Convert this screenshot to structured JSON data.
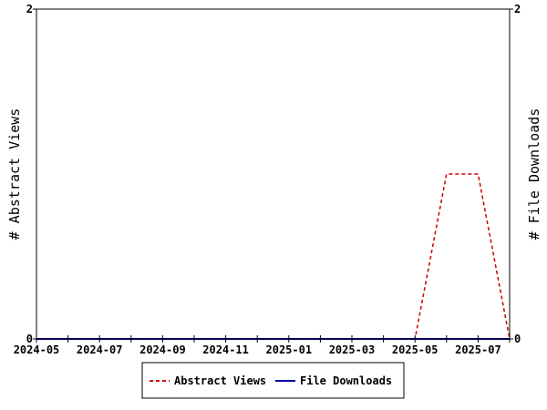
{
  "chart_data": {
    "type": "line",
    "title": "",
    "x_ticks": [
      "2024-05",
      "2024-07",
      "2024-09",
      "2024-11",
      "2025-01",
      "2025-03",
      "2025-05",
      "2025-07"
    ],
    "x_range": [
      "2024-05",
      "2025-08"
    ],
    "ylabel_left": "# Abstract Views",
    "ylabel_right": "# File Downloads",
    "ylim_left": [
      0,
      2
    ],
    "ylim_right": [
      0,
      2
    ],
    "y_ticks_left": [
      "0",
      "2"
    ],
    "y_ticks_right": [
      "0",
      "2"
    ],
    "grid": false,
    "legend_position": "bottom",
    "series": [
      {
        "name": "Abstract Views",
        "axis": "left",
        "color": "#cc0000",
        "style": "dashed",
        "x": [
          "2024-05",
          "2024-06",
          "2024-07",
          "2024-08",
          "2024-09",
          "2024-10",
          "2024-11",
          "2024-12",
          "2025-01",
          "2025-02",
          "2025-03",
          "2025-04",
          "2025-05",
          "2025-06",
          "2025-07",
          "2025-08"
        ],
        "values": [
          0,
          0,
          0,
          0,
          0,
          0,
          0,
          0,
          0,
          0,
          0,
          0,
          0,
          1,
          1,
          0
        ]
      },
      {
        "name": "File Downloads",
        "axis": "right",
        "color": "#0000aa",
        "style": "solid",
        "x": [
          "2024-05",
          "2024-06",
          "2024-07",
          "2024-08",
          "2024-09",
          "2024-10",
          "2024-11",
          "2024-12",
          "2025-01",
          "2025-02",
          "2025-03",
          "2025-04",
          "2025-05",
          "2025-06",
          "2025-07",
          "2025-08"
        ],
        "values": [
          0,
          0,
          0,
          0,
          0,
          0,
          0,
          0,
          0,
          0,
          0,
          0,
          0,
          0,
          0,
          0
        ]
      }
    ]
  }
}
